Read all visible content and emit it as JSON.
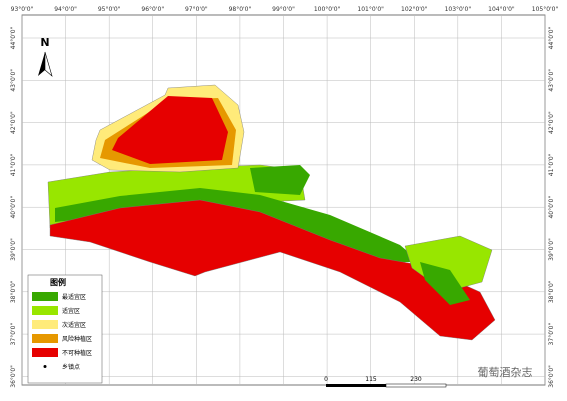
{
  "map": {
    "north": "N",
    "lon_labels": [
      "93°0'0\"",
      "94°0'0\"",
      "95°0'0\"",
      "96°0'0\"",
      "97°0'0\"",
      "98°0'0\"",
      "99°0'0\"",
      "100°0'0\"",
      "101°0'0\"",
      "102°0'0\"",
      "103°0'0\"",
      "104°0'0\"",
      "105°0'0\""
    ],
    "lat_labels": [
      "44°0'0\"",
      "43°0'0\"",
      "42°0'0\"",
      "41°0'0\"",
      "40°0'0\"",
      "39°0'0\"",
      "38°0'0\"",
      "37°0'0\"",
      "36°0'0\""
    ],
    "legend": {
      "title": "图例",
      "items": [
        {
          "label": "最适宜区",
          "color": "#38a800"
        },
        {
          "label": "适宜区",
          "color": "#98e600"
        },
        {
          "label": "次适宜区",
          "color": "#ffeb7a"
        },
        {
          "label": "风险种植区",
          "color": "#e69800"
        },
        {
          "label": "不可种植区",
          "color": "#e60000"
        },
        {
          "label": "乡镇点"
        }
      ]
    },
    "scale": [
      "0",
      "115",
      "230"
    ],
    "watermark": "葡萄酒杂志"
  }
}
